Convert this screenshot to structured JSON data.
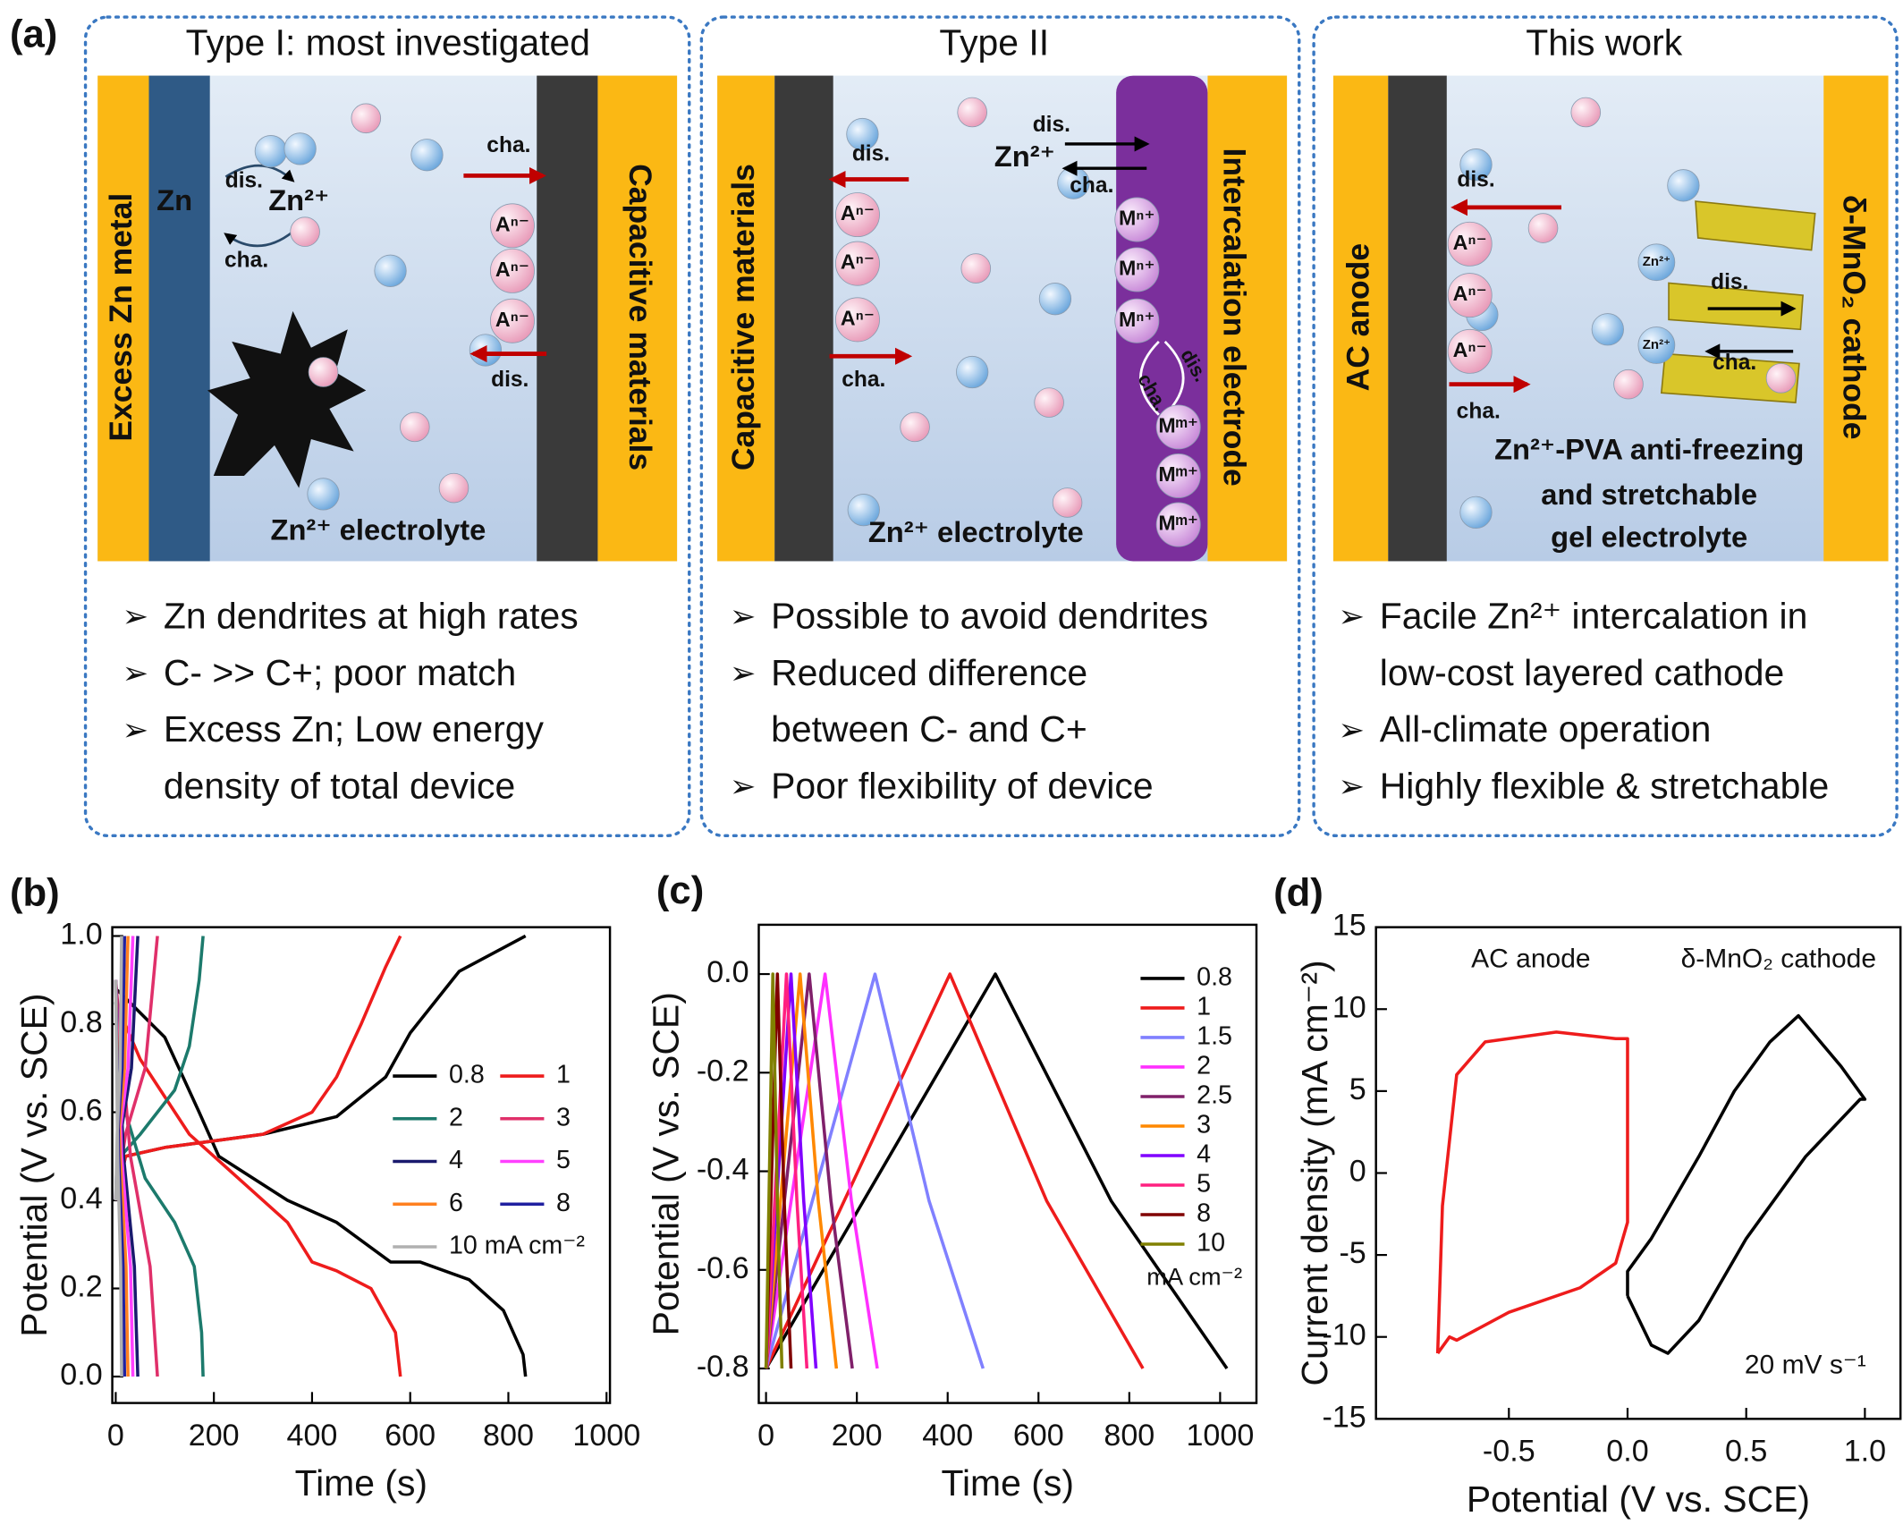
{
  "panel_a": {
    "label": "(a)",
    "panels": [
      {
        "title": "Type I: most investigated",
        "labels": [
          "Excess Zn metal",
          "Zn",
          "Zn²⁺",
          "dis.",
          "cha.",
          "cha.",
          "Aⁿ⁻",
          "Aⁿ⁻",
          "Aⁿ⁻",
          "dis.",
          "Capacitive materials",
          "Zn²⁺ electrolyte"
        ],
        "bullets": [
          [
            "Zn dendrites at high rates"
          ],
          [
            "C- >> C+; poor match"
          ],
          [
            "Excess Zn; Low energy",
            "density of total device"
          ]
        ]
      },
      {
        "title": "Type II",
        "labels": [
          "Capacitive materials",
          "dis.",
          "Aⁿ⁻",
          "Aⁿ⁻",
          "Aⁿ⁻",
          "cha.",
          "Zn²⁺",
          "dis.",
          "cha.",
          "Intercalation electrode",
          "Mⁿ⁺",
          "Mⁿ⁺",
          "Mⁿ⁺",
          "cha.",
          "dis.",
          "Mᵐ⁺",
          "Mᵐ⁺",
          "Mᵐ⁺",
          "Zn²⁺ electrolyte"
        ],
        "bullets": [
          [
            "Possible to avoid dendrites"
          ],
          [
            "Reduced difference",
            "between C- and C+"
          ],
          [
            "Poor flexibility of device"
          ]
        ]
      },
      {
        "title": "This work",
        "labels": [
          "AC anode",
          "dis.",
          "Aⁿ⁻",
          "Aⁿ⁻",
          "Aⁿ⁻",
          "cha.",
          "Zn²⁺",
          "Zn²⁺",
          "dis.",
          "cha.",
          "δ-MnO₂ cathode",
          "Zn²⁺-PVA anti-freezing",
          "and stretchable",
          "gel electrolyte"
        ],
        "bullets": [
          [
            "Facile Zn²⁺ intercalation in",
            "low-cost layered cathode"
          ],
          [
            "All-climate operation"
          ],
          [
            "Highly flexible & stretchable"
          ]
        ]
      }
    ]
  },
  "chart_data": [
    {
      "type": "line",
      "title": "(b)",
      "xlabel": "Time (s)",
      "ylabel": "Potential (V vs. SCE)",
      "xlim": [
        -7,
        1007
      ],
      "ylim": [
        -0.06,
        1.02
      ],
      "xticks": [
        0,
        200,
        400,
        600,
        800,
        1000
      ],
      "yticks": [
        {
          "value": 0,
          "label": "0.0"
        },
        0.2,
        0.4,
        0.6,
        0.8,
        {
          "value": 1,
          "label": "1.0"
        }
      ],
      "series": [
        {
          "name": "0.8",
          "color": "#000000",
          "x": [
            0,
            20,
            100,
            300,
            450,
            550,
            600,
            700,
            835,
            null,
            0,
            10,
            100,
            170,
            210,
            350,
            450,
            560,
            620,
            720,
            790,
            830,
            835
          ],
          "values": [
            0.4,
            0.5,
            0.52,
            0.55,
            0.59,
            0.68,
            0.78,
            0.92,
            1.0,
            null,
            0.88,
            0.87,
            0.77,
            0.6,
            0.5,
            0.4,
            0.35,
            0.26,
            0.26,
            0.22,
            0.15,
            0.05,
            0
          ]
        },
        {
          "name": "1",
          "color": "#ee1c1c",
          "x": [
            0,
            20,
            100,
            300,
            400,
            450,
            500,
            550,
            580,
            null,
            0,
            50,
            150,
            250,
            350,
            400,
            450,
            520,
            570,
            580
          ],
          "values": [
            0.4,
            0.5,
            0.52,
            0.55,
            0.6,
            0.68,
            0.8,
            0.93,
            1.0,
            null,
            0.85,
            0.72,
            0.55,
            0.45,
            0.35,
            0.26,
            0.24,
            0.2,
            0.1,
            0
          ]
        },
        {
          "name": "2",
          "color": "#1c7a6c",
          "x": [
            0,
            10,
            50,
            120,
            150,
            170,
            178,
            null,
            0,
            20,
            60,
            120,
            160,
            175,
            178
          ],
          "values": [
            0.4,
            0.5,
            0.55,
            0.65,
            0.75,
            0.9,
            1.0,
            null,
            0.85,
            0.6,
            0.45,
            0.35,
            0.25,
            0.1,
            0
          ]
        },
        {
          "name": "3",
          "color": "#e0306a",
          "x": [
            0,
            20,
            60,
            85,
            null,
            0,
            30,
            70,
            85
          ],
          "values": [
            0.4,
            0.55,
            0.7,
            1.0,
            null,
            0.9,
            0.5,
            0.25,
            0
          ]
        },
        {
          "name": "4",
          "color": "#1a1a6e",
          "x": [
            0,
            10,
            32,
            45,
            null,
            0,
            16,
            38,
            45
          ],
          "values": [
            0.4,
            0.55,
            0.7,
            1.0,
            null,
            0.9,
            0.5,
            0.25,
            0
          ]
        },
        {
          "name": "5",
          "color": "#ff40ff",
          "x": [
            0,
            8,
            25,
            35,
            null,
            0,
            12,
            30,
            35
          ],
          "values": [
            0.4,
            0.55,
            0.7,
            1.0,
            null,
            0.9,
            0.5,
            0.25,
            0
          ]
        },
        {
          "name": "6",
          "color": "#ff8020",
          "x": [
            0,
            6,
            18,
            25,
            null,
            0,
            9,
            21,
            25
          ],
          "values": [
            0.4,
            0.55,
            0.7,
            1.0,
            null,
            0.9,
            0.5,
            0.25,
            0
          ]
        },
        {
          "name": "8",
          "color": "#2020a0",
          "x": [
            0,
            4,
            13,
            18,
            null,
            0,
            6,
            15,
            18
          ],
          "values": [
            0.4,
            0.55,
            0.7,
            1.0,
            null,
            0.9,
            0.5,
            0.25,
            0
          ]
        },
        {
          "name": "10 mA cm⁻²",
          "color": "#b0b0b0",
          "x": [
            0,
            3,
            9,
            12,
            null,
            0,
            4,
            10,
            12
          ],
          "values": [
            0.4,
            0.55,
            0.7,
            1.0,
            null,
            0.9,
            0.5,
            0.25,
            0
          ]
        }
      ]
    },
    {
      "type": "line",
      "title": "(c)",
      "xlabel": "Time (s)",
      "ylabel": "Potential (V vs. SCE)",
      "xlim": [
        -16,
        1080
      ],
      "ylim": [
        -0.87,
        0.1
      ],
      "xticks": [
        0,
        200,
        400,
        600,
        800,
        1000
      ],
      "yticks": [
        {
          "value": 0,
          "label": "0.0"
        },
        -0.2,
        -0.4,
        -0.6,
        -0.8
      ],
      "legend_note": "mA cm⁻²",
      "series": [
        {
          "name": "0.8",
          "color": "#000000",
          "x": [
            0,
            505,
            760,
            1015
          ],
          "values": [
            -0.8,
            0,
            -0.46,
            -0.8
          ]
        },
        {
          "name": "1",
          "color": "#ee1c1c",
          "x": [
            0,
            405,
            618,
            830
          ],
          "values": [
            -0.8,
            0,
            -0.46,
            -0.8
          ]
        },
        {
          "name": "1.5",
          "color": "#8080ff",
          "x": [
            0,
            240,
            359,
            478
          ],
          "values": [
            -0.8,
            0,
            -0.46,
            -0.8
          ]
        },
        {
          "name": "2",
          "color": "#ff30ff",
          "x": [
            0,
            130,
            188,
            245
          ],
          "values": [
            -0.8,
            0,
            -0.46,
            -0.8
          ]
        },
        {
          "name": "2.5",
          "color": "#80206a",
          "x": [
            0,
            95,
            143,
            190
          ],
          "values": [
            -0.8,
            0,
            -0.46,
            -0.8
          ]
        },
        {
          "name": "3",
          "color": "#ff8800",
          "x": [
            0,
            75,
            115,
            155
          ],
          "values": [
            -0.8,
            0,
            -0.46,
            -0.8
          ]
        },
        {
          "name": "4",
          "color": "#8000ff",
          "x": [
            0,
            55,
            83,
            110
          ],
          "values": [
            -0.8,
            0,
            -0.46,
            -0.8
          ]
        },
        {
          "name": "5",
          "color": "#ff2080",
          "x": [
            0,
            45,
            68,
            90
          ],
          "values": [
            -0.8,
            0,
            -0.46,
            -0.8
          ]
        },
        {
          "name": "8",
          "color": "#800000",
          "x": [
            0,
            25,
            40,
            55
          ],
          "values": [
            -0.8,
            0,
            -0.46,
            -0.8
          ]
        },
        {
          "name": "10",
          "color": "#808000",
          "x": [
            0,
            15,
            25,
            35
          ],
          "values": [
            -0.8,
            0,
            -0.46,
            -0.8
          ]
        }
      ]
    },
    {
      "type": "line",
      "title": "(d)",
      "xlabel": "Potential (V vs. SCE)",
      "ylabel": "Current density (mA cm⁻²)",
      "xlim": [
        -1.06,
        1.15
      ],
      "ylim": [
        -15,
        15
      ],
      "xticks": [
        -0.5,
        {
          "value": 0,
          "label": "0.0"
        },
        0.5,
        {
          "value": 1,
          "label": "1.0"
        }
      ],
      "yticks": [
        -15,
        -10,
        -5,
        0,
        5,
        10,
        15
      ],
      "annotations": [
        "AC anode",
        "δ-MnO₂ cathode",
        "20 mV s⁻¹"
      ],
      "series": [
        {
          "color": "#ee1c1c",
          "x": [
            -0.8,
            -0.75,
            -0.72,
            -0.5,
            -0.2,
            -0.05,
            0,
            0,
            -0.05,
            -0.3,
            -0.6,
            -0.72,
            -0.78,
            -0.8
          ],
          "values": [
            -11,
            -10,
            -10.2,
            -8.5,
            -7,
            -5.5,
            -3,
            8.2,
            8.2,
            8.6,
            8,
            6,
            -2,
            -11
          ]
        },
        {
          "color": "#000000",
          "x": [
            0,
            0.1,
            0.17,
            0.3,
            0.5,
            0.75,
            0.98,
            1.0,
            0.9,
            0.72,
            0.6,
            0.45,
            0.3,
            0.1,
            0,
            0
          ],
          "values": [
            -7.5,
            -10.5,
            -11,
            -9,
            -4,
            1,
            4.5,
            4.5,
            6.5,
            9.6,
            8,
            5,
            1,
            -4,
            -6,
            -7.5
          ]
        }
      ]
    }
  ]
}
